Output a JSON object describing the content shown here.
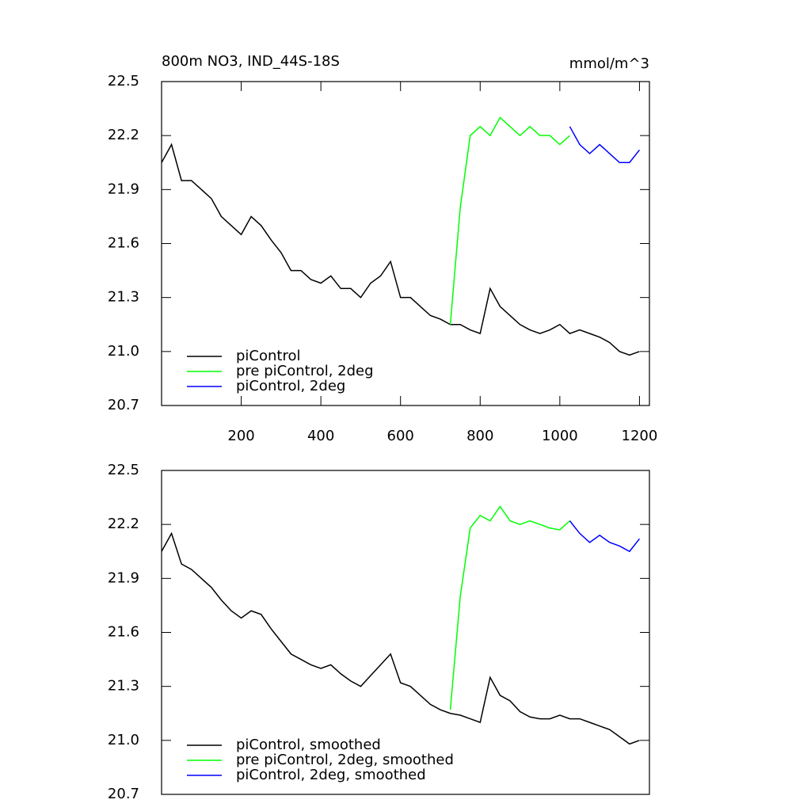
{
  "chart_data": [
    {
      "type": "line",
      "title": "800m NO3, IND_44S-18S",
      "units": "mmol/m^3",
      "x": [
        0,
        25,
        50,
        75,
        100,
        125,
        150,
        175,
        200,
        225,
        250,
        275,
        300,
        325,
        350,
        375,
        400,
        425,
        450,
        475,
        500,
        525,
        550,
        575,
        600,
        625,
        650,
        675,
        700,
        725,
        750,
        775,
        800,
        825,
        850,
        875,
        900,
        925,
        950,
        975,
        1000,
        1025,
        1050,
        1075,
        1100,
        1125,
        1150,
        1175,
        1200
      ],
      "series": [
        {
          "name": "piControl",
          "color": "#000000",
          "values": [
            22.05,
            22.15,
            21.95,
            21.95,
            21.9,
            21.85,
            21.75,
            21.7,
            21.65,
            21.75,
            21.7,
            21.62,
            21.55,
            21.45,
            21.45,
            21.4,
            21.38,
            21.42,
            21.35,
            21.35,
            21.3,
            21.38,
            21.42,
            21.5,
            21.3,
            21.3,
            21.25,
            21.2,
            21.18,
            21.15,
            21.15,
            21.12,
            21.1,
            21.35,
            21.25,
            21.2,
            21.15,
            21.12,
            21.1,
            21.12,
            21.15,
            21.1,
            21.12,
            21.1,
            21.08,
            21.05,
            21.0,
            20.98,
            21.0
          ]
        },
        {
          "name": "pre piControl, 2deg",
          "color": "#00ff00",
          "values": [
            null,
            null,
            null,
            null,
            null,
            null,
            null,
            null,
            null,
            null,
            null,
            null,
            null,
            null,
            null,
            null,
            null,
            null,
            null,
            null,
            null,
            null,
            null,
            null,
            null,
            null,
            null,
            null,
            null,
            21.15,
            21.8,
            22.2,
            22.25,
            22.2,
            22.3,
            22.25,
            22.2,
            22.25,
            22.2,
            22.2,
            22.15,
            22.2,
            null,
            null,
            null,
            null,
            null,
            null,
            null
          ]
        },
        {
          "name": "piControl, 2deg",
          "color": "#0000ff",
          "values": [
            null,
            null,
            null,
            null,
            null,
            null,
            null,
            null,
            null,
            null,
            null,
            null,
            null,
            null,
            null,
            null,
            null,
            null,
            null,
            null,
            null,
            null,
            null,
            null,
            null,
            null,
            null,
            null,
            null,
            null,
            null,
            null,
            null,
            null,
            null,
            null,
            null,
            null,
            null,
            null,
            null,
            22.25,
            22.15,
            22.1,
            22.15,
            22.1,
            22.05,
            22.05,
            22.12
          ]
        }
      ],
      "xlim": [
        0,
        1225
      ],
      "xticks": [
        200,
        400,
        600,
        800,
        1000,
        1200
      ],
      "ylim": [
        20.7,
        22.5
      ],
      "yticks": [
        20.7,
        {
          "value": 21,
          "label": "21.0"
        },
        21.3,
        21.6,
        21.9,
        22.2,
        22.5
      ]
    },
    {
      "type": "line",
      "x": [
        0,
        25,
        50,
        75,
        100,
        125,
        150,
        175,
        200,
        225,
        250,
        275,
        300,
        325,
        350,
        375,
        400,
        425,
        450,
        475,
        500,
        525,
        550,
        575,
        600,
        625,
        650,
        675,
        700,
        725,
        750,
        775,
        800,
        825,
        850,
        875,
        900,
        925,
        950,
        975,
        1000,
        1025,
        1050,
        1075,
        1100,
        1125,
        1150,
        1175,
        1200
      ],
      "series": [
        {
          "name": "piControl, smoothed",
          "color": "#000000",
          "values": [
            22.05,
            22.15,
            21.98,
            21.95,
            21.9,
            21.85,
            21.78,
            21.72,
            21.68,
            21.72,
            21.7,
            21.62,
            21.55,
            21.48,
            21.45,
            21.42,
            21.4,
            21.42,
            21.37,
            21.33,
            21.3,
            21.36,
            21.42,
            21.48,
            21.32,
            21.3,
            21.25,
            21.2,
            21.17,
            21.15,
            21.14,
            21.12,
            21.1,
            21.35,
            21.25,
            21.22,
            21.16,
            21.13,
            21.12,
            21.12,
            21.14,
            21.12,
            21.12,
            21.1,
            21.08,
            21.06,
            21.02,
            20.98,
            21.0
          ]
        },
        {
          "name": "pre piControl, 2deg, smoothed",
          "color": "#00ff00",
          "values": [
            null,
            null,
            null,
            null,
            null,
            null,
            null,
            null,
            null,
            null,
            null,
            null,
            null,
            null,
            null,
            null,
            null,
            null,
            null,
            null,
            null,
            null,
            null,
            null,
            null,
            null,
            null,
            null,
            null,
            21.17,
            21.8,
            22.18,
            22.25,
            22.22,
            22.3,
            22.22,
            22.2,
            22.22,
            22.2,
            22.18,
            22.17,
            22.22,
            null,
            null,
            null,
            null,
            null,
            null,
            null
          ]
        },
        {
          "name": "piControl, 2deg, smoothed",
          "color": "#0000ff",
          "values": [
            null,
            null,
            null,
            null,
            null,
            null,
            null,
            null,
            null,
            null,
            null,
            null,
            null,
            null,
            null,
            null,
            null,
            null,
            null,
            null,
            null,
            null,
            null,
            null,
            null,
            null,
            null,
            null,
            null,
            null,
            null,
            null,
            null,
            null,
            null,
            null,
            null,
            null,
            null,
            null,
            null,
            22.22,
            22.15,
            22.1,
            22.14,
            22.1,
            22.08,
            22.05,
            22.12
          ]
        }
      ],
      "xlim": [
        0,
        1225
      ],
      "ylim": [
        20.7,
        22.5
      ],
      "yticks": [
        20.7,
        {
          "value": 21,
          "label": "21.0"
        },
        21.3,
        21.6,
        21.9,
        22.2,
        22.5
      ]
    }
  ]
}
